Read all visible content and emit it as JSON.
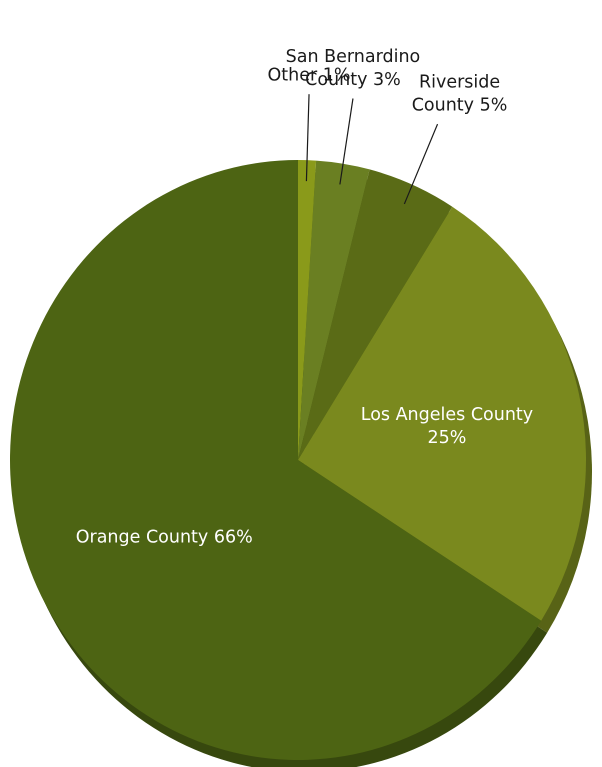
{
  "chart_data": {
    "type": "pie",
    "title": "",
    "legend": "none",
    "start_angle_deg": 90,
    "direction": "clockwise",
    "slices": [
      {
        "name": "Other",
        "value": 1,
        "color": "#8a9a1a",
        "label_lines": [
          "Other 1%"
        ],
        "placement": "outside"
      },
      {
        "name": "San Bernardino County",
        "value": 3,
        "color": "#6a7f22",
        "label_lines": [
          "San Bernardino",
          "County 3%"
        ],
        "placement": "outside"
      },
      {
        "name": "Riverside County",
        "value": 5,
        "color": "#5a6b16",
        "label_lines": [
          "Riverside",
          "County 5%"
        ],
        "placement": "outside"
      },
      {
        "name": "Los Angeles County",
        "value": 25,
        "color": "#7a891e",
        "label_lines": [
          "Los Angeles County",
          "25%"
        ],
        "placement": "inside"
      },
      {
        "name": "Orange County",
        "value": 66,
        "color": "#4d6413",
        "label_lines": [
          "Orange County 66%"
        ],
        "placement": "inside"
      }
    ]
  }
}
